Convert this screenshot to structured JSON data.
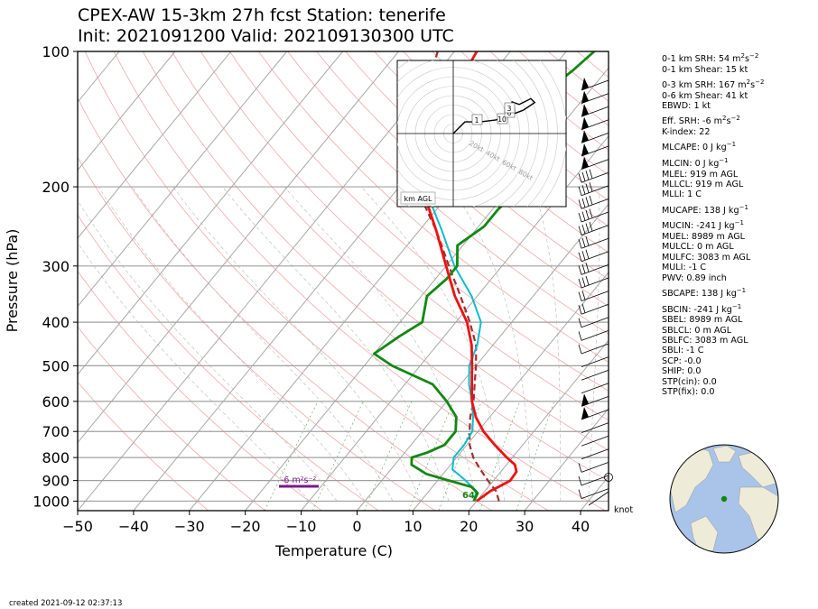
{
  "title_line1": "CPEX-AW 15-3km  27h fcst  Station: tenerife",
  "title_line2": "Init: 2021091200  Valid: 202109130300 UTC",
  "footer_created": "created 2021-09-12 02:37:13",
  "wind_units_label": "knot",
  "colors": {
    "temperature": "#ee1111",
    "dewpoint": "#118811",
    "wetbulb": "#11bbcc",
    "parcel": "#a03030",
    "srh_marker": "#7a1a8a",
    "isobar": "#a0a0a0",
    "dry_adiabat": "#f0a0a0"
  },
  "chart_data": {
    "type": "line",
    "xlabel": "Temperature (C)",
    "ylabel": "Pressure (hPa)",
    "xlim": [
      -50,
      45
    ],
    "ylim": [
      1050,
      100
    ],
    "y_scale": "log",
    "x_ticks": [
      -50,
      -40,
      -30,
      -20,
      -10,
      0,
      10,
      20,
      30,
      40
    ],
    "y_ticks": [
      100,
      200,
      300,
      400,
      500,
      600,
      700,
      800,
      900,
      1000
    ],
    "grid": true,
    "series": [
      {
        "key": "temperature",
        "points": [
          [
            1000,
            20
          ],
          [
            950,
            21
          ],
          [
            925,
            22
          ],
          [
            900,
            23
          ],
          [
            860,
            22.8
          ],
          [
            830,
            21.5
          ],
          [
            800,
            19
          ],
          [
            750,
            15
          ],
          [
            700,
            11
          ],
          [
            650,
            7.5
          ],
          [
            600,
            4.5
          ],
          [
            550,
            2.0
          ],
          [
            500,
            -0.7
          ],
          [
            450,
            -3.8
          ],
          [
            400,
            -8
          ],
          [
            350,
            -14
          ],
          [
            300,
            -20
          ],
          [
            250,
            -27
          ],
          [
            200,
            -36
          ],
          [
            170,
            -40
          ],
          [
            150,
            -42
          ],
          [
            125,
            -44
          ],
          [
            100,
            -46
          ]
        ]
      },
      {
        "key": "dewpoint",
        "points": [
          [
            1000,
            19.5
          ],
          [
            960,
            19
          ],
          [
            930,
            17
          ],
          [
            900,
            12
          ],
          [
            870,
            7
          ],
          [
            830,
            3
          ],
          [
            800,
            2
          ],
          [
            780,
            4
          ],
          [
            750,
            6
          ],
          [
            700,
            6
          ],
          [
            650,
            4
          ],
          [
            600,
            0
          ],
          [
            550,
            -5
          ],
          [
            500,
            -15
          ],
          [
            470,
            -20
          ],
          [
            430,
            -18
          ],
          [
            400,
            -16
          ],
          [
            350,
            -19
          ],
          [
            320,
            -18
          ],
          [
            300,
            -18
          ],
          [
            270,
            -21
          ],
          [
            245,
            -19
          ],
          [
            225,
            -19
          ],
          [
            200,
            -18
          ],
          [
            180,
            -23
          ],
          [
            160,
            -25
          ],
          [
            140,
            -27
          ],
          [
            125,
            -28
          ],
          [
            110,
            -26
          ],
          [
            100,
            -25
          ]
        ]
      },
      {
        "key": "wetbulb",
        "points": [
          [
            1000,
            19.5
          ],
          [
            950,
            18.5
          ],
          [
            900,
            15
          ],
          [
            850,
            11
          ],
          [
            800,
            9.5
          ],
          [
            750,
            9.5
          ],
          [
            700,
            9
          ],
          [
            650,
            7
          ],
          [
            600,
            4.5
          ],
          [
            550,
            1.5
          ],
          [
            500,
            -1.2
          ],
          [
            450,
            -2.8
          ],
          [
            400,
            -5.5
          ],
          [
            350,
            -11
          ],
          [
            300,
            -18.5
          ],
          [
            250,
            -26
          ],
          [
            200,
            -35.5
          ],
          [
            170,
            -40
          ],
          [
            150,
            -42.5
          ],
          [
            125,
            -44
          ],
          [
            100,
            -46
          ]
        ]
      },
      {
        "key": "parcel",
        "points": [
          [
            1000,
            24
          ],
          [
            950,
            22
          ],
          [
            925,
            20.5
          ],
          [
            900,
            19
          ],
          [
            850,
            16
          ],
          [
            800,
            13
          ],
          [
            750,
            10.5
          ],
          [
            700,
            8.5
          ],
          [
            650,
            6.5
          ],
          [
            600,
            4.8
          ],
          [
            550,
            2.5
          ],
          [
            500,
            0
          ],
          [
            450,
            -3
          ],
          [
            400,
            -7.5
          ],
          [
            350,
            -13
          ],
          [
            300,
            -19.5
          ],
          [
            250,
            -27
          ],
          [
            200,
            -37
          ],
          [
            170,
            -42
          ],
          [
            150,
            -45.5
          ],
          [
            125,
            -49
          ],
          [
            100,
            -53
          ]
        ]
      }
    ],
    "annotations": [
      {
        "text": "-6 m²s⁻²",
        "pressure": 905,
        "temp": -10.5
      },
      {
        "text": "64",
        "pressure": 985,
        "temp": 20
      }
    ],
    "hodograph": {
      "ring_labels": [
        "20kt",
        "40kt",
        "60kt",
        "80kt"
      ],
      "height_labels": [
        "1",
        "10",
        "6",
        "3"
      ],
      "units_label": "km AGL",
      "trace": [
        [
          0,
          0
        ],
        [
          3,
          3
        ],
        [
          7,
          3
        ],
        [
          11,
          3.5
        ],
        [
          14,
          4.5
        ],
        [
          18,
          6
        ],
        [
          21,
          8
        ],
        [
          20,
          9
        ],
        [
          17,
          7.5
        ],
        [
          15,
          8.2
        ]
      ]
    }
  },
  "params": [
    {
      "a": "0-1 km SRH: 54 m",
      "b": "2",
      "c": "s",
      "d": "−2",
      "gap": false
    },
    {
      "a": "0-1 km Shear: 15 kt",
      "gap": false
    },
    {
      "a": "0-3 km SRH: 167 m",
      "b": "2",
      "c": "s",
      "d": "−2",
      "gap": true
    },
    {
      "a": "0-6 km Shear: 41 kt",
      "gap": false
    },
    {
      "a": "EBWD: 1 kt",
      "gap": false
    },
    {
      "a": "Eff. SRH: -6 m",
      "b": "2",
      "c": "s",
      "d": "−2",
      "gap": true
    },
    {
      "a": "K-index: 22",
      "gap": false
    },
    {
      "a": "MLCAPE: 0 J kg",
      "d": "−1",
      "gap": true
    },
    {
      "a": "MLCIN: 0 J kg",
      "d": "−1",
      "gap": true
    },
    {
      "a": "MLEL: 919 m AGL",
      "gap": false
    },
    {
      "a": "MLLCL: 919 m AGL",
      "gap": false
    },
    {
      "a": "MLLI: 1 C",
      "gap": false
    },
    {
      "a": "MUCAPE: 138 J kg",
      "d": "−1",
      "gap": true
    },
    {
      "a": "MUCIN: -241 J kg",
      "d": "−1",
      "gap": true
    },
    {
      "a": "MUEL: 8989 m AGL",
      "gap": false
    },
    {
      "a": "MULCL: 0 m AGL",
      "gap": false
    },
    {
      "a": "MULFC: 3083 m AGL",
      "gap": false
    },
    {
      "a": "MULI: -1 C",
      "gap": false
    },
    {
      "a": "PWV: 0.89 inch",
      "gap": false
    },
    {
      "a": "SBCAPE: 138 J kg",
      "d": "−1",
      "gap": true
    },
    {
      "a": "SBCIN: -241 J kg",
      "d": "−1",
      "gap": true
    },
    {
      "a": "SBEL: 8989 m AGL",
      "gap": false
    },
    {
      "a": "SBLCL: 0 m AGL",
      "gap": false
    },
    {
      "a": "SBLFC: 3083 m AGL",
      "gap": false
    },
    {
      "a": "SBLI: -1 C",
      "gap": false
    },
    {
      "a": "SCP: -0.0",
      "gap": false
    },
    {
      "a": "SHIP: 0.0",
      "gap": false
    },
    {
      "a": "STP(cin): 0.0",
      "gap": false
    },
    {
      "a": "STP(fix): 0.0",
      "gap": false
    }
  ]
}
